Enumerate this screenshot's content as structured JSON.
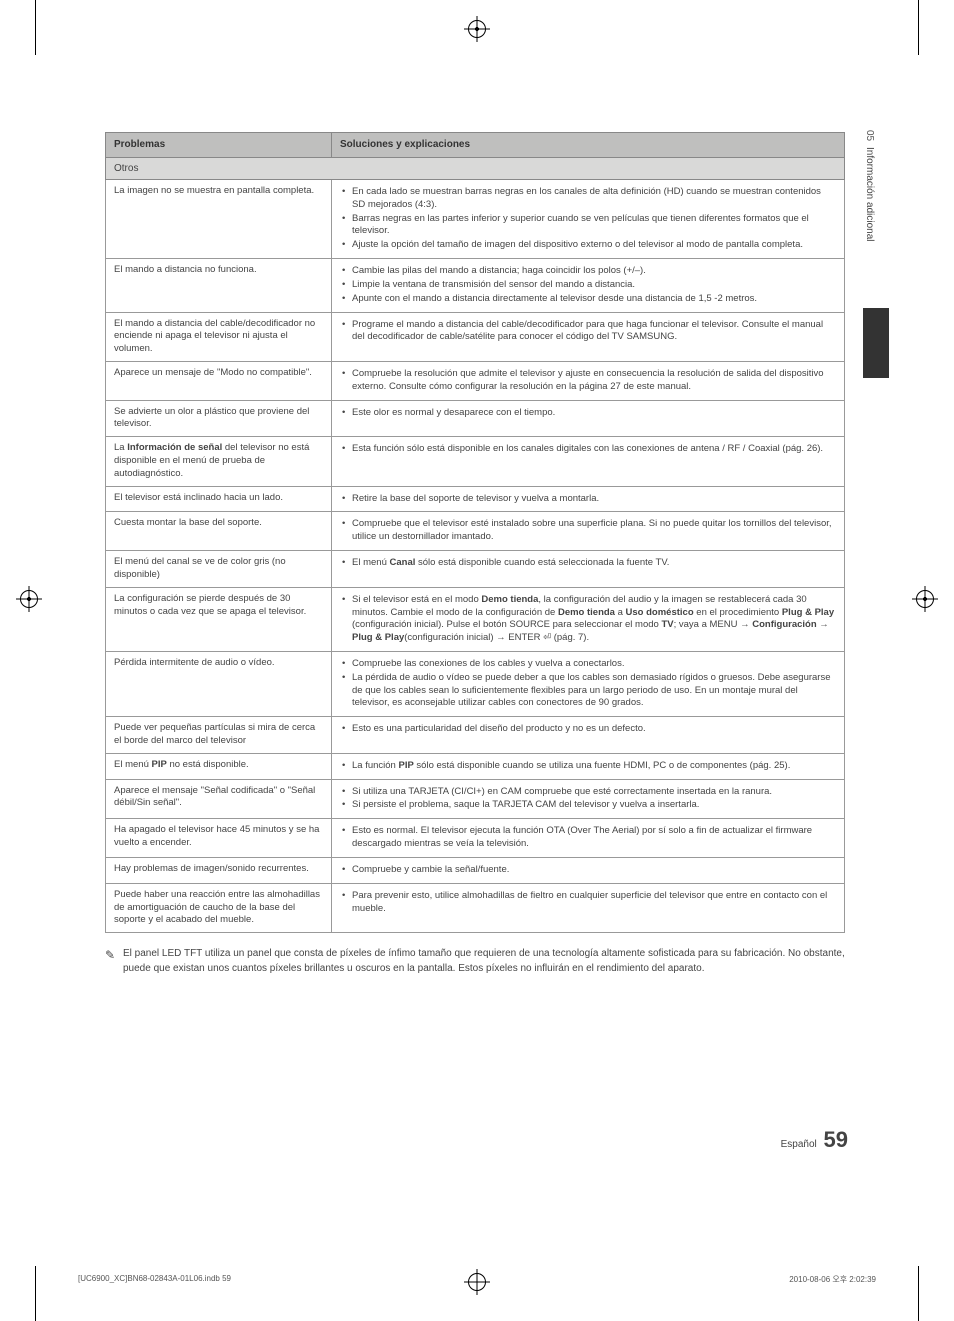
{
  "sidebar": {
    "chapter_num": "05",
    "chapter_title": "Información adicional"
  },
  "table": {
    "header": {
      "problems": "Problemas",
      "solutions": "Soluciones y explicaciones"
    },
    "section": "Otros",
    "rows": [
      {
        "problem": "La imagen no se muestra en pantalla completa.",
        "solutions": [
          "En cada lado se muestran barras negras en los canales de alta definición (HD) cuando se muestran contenidos SD mejorados (4:3).",
          "Barras negras en las partes inferior y superior cuando se ven películas que tienen diferentes formatos que el televisor.",
          "Ajuste la opción del tamaño de imagen del dispositivo externo o del televisor al modo de pantalla completa."
        ]
      },
      {
        "problem": "El mando a distancia no funciona.",
        "solutions": [
          "Cambie las pilas del mando a distancia; haga coincidir los polos (+/–).",
          "Limpie la ventana de transmisión del sensor del mando a distancia.",
          "Apunte con el mando a distancia directamente al televisor desde una distancia de 1,5 -2 metros."
        ]
      },
      {
        "problem": "El mando a distancia del cable/decodificador no enciende ni apaga el televisor ni ajusta el volumen.",
        "solutions": [
          "Programe el mando a distancia del cable/decodificador para que haga funcionar el televisor. Consulte el manual del decodificador de cable/satélite para conocer el código del TV SAMSUNG."
        ]
      },
      {
        "problem": "Aparece un mensaje de \"Modo no compatible\".",
        "solutions": [
          "Compruebe la resolución que admite el televisor y ajuste en consecuencia la resolución de salida del dispositivo externo. Consulte cómo configurar la resolución en la página 27 de este manual."
        ]
      },
      {
        "problem": "Se advierte un olor a plástico que proviene del televisor.",
        "solutions": [
          "Este olor es normal y desaparece con el tiempo."
        ]
      },
      {
        "problem_html": "La <b>Información de señal</b> del televisor no está disponible en el menú de prueba de autodiagnóstico.",
        "solutions": [
          "Esta función sólo está disponible en los canales digitales con las conexiones de antena / RF / Coaxial (pág. 26)."
        ]
      },
      {
        "problem": "El televisor está inclinado hacia un lado.",
        "solutions": [
          "Retire la base del soporte de televisor y vuelva a montarla."
        ]
      },
      {
        "problem": "Cuesta montar la base del soporte.",
        "solutions": [
          "Compruebe que el televisor esté instalado sobre una superficie plana. Si no puede quitar los tornillos del televisor, utilice un destornillador imantado."
        ]
      },
      {
        "problem": "El menú del canal se ve de color gris (no disponible)",
        "solutions_html": [
          "El menú <b>Canal</b> sólo está disponible cuando está seleccionada la fuente TV."
        ]
      },
      {
        "problem": "La configuración se pierde después de 30 minutos o cada vez que se apaga el televisor.",
        "solutions_html": [
          "Si el televisor está en el modo <b>Demo tienda</b>, la configuración del audio y la imagen se restablecerá cada 30 minutos. Cambie el modo de la configuración de <b>Demo tienda</b> a <b>Uso doméstico</b> en el procedimiento <b>Plug & Play</b> (configuración inicial). Pulse el botón SOURCE para seleccionar el modo <b>TV</b>; vaya a MENU → <b>Configuración</b> → <b>Plug & Play</b>(configuración inicial) → ENTER ⏎ (pág. 7)."
        ]
      },
      {
        "problem": "Pérdida intermitente de audio o vídeo.",
        "solutions": [
          "Compruebe las conexiones de los cables y vuelva a conectarlos.",
          "La pérdida de audio o vídeo se puede deber a que los cables son demasiado rígidos o gruesos. Debe asegurarse de que los cables sean lo suficientemente flexibles para un largo periodo de uso. En un montaje mural del televisor, es aconsejable utilizar cables con conectores de 90 grados."
        ]
      },
      {
        "problem": "Puede ver pequeñas partículas si mira de cerca el borde del marco del televisor",
        "solutions": [
          "Esto es una particularidad del diseño del producto y no es un defecto."
        ]
      },
      {
        "problem_html": "El menú <b>PIP</b> no está disponible.",
        "solutions_html": [
          "La función <b>PIP</b> sólo está disponible cuando se utiliza una fuente HDMI, PC o de componentes (pág. 25)."
        ]
      },
      {
        "problem": "Aparece el mensaje \"Señal codificada\" o \"Señal débil/Sin señal\".",
        "solutions": [
          "Si utiliza una TARJETA (CI/CI+) en CAM compruebe que esté correctamente insertada en la ranura.",
          "Si persiste el problema, saque la TARJETA CAM del televisor y vuelva a insertarla."
        ]
      },
      {
        "problem": "Ha apagado el televisor hace 45 minutos y se ha vuelto a encender.",
        "solutions": [
          "Esto es normal. El televisor ejecuta la función OTA (Over The Aerial) por sí solo a fin de actualizar el firmware descargado mientras se veía la televisión."
        ]
      },
      {
        "problem": "Hay problemas de imagen/sonido recurrentes.",
        "solutions": [
          "Compruebe y cambie la señal/fuente."
        ]
      },
      {
        "problem": "Puede haber una reacción entre las almohadillas de amortiguación de caucho de la base del soporte y el acabado del mueble.",
        "solutions": [
          "Para prevenir esto, utilice almohadillas de fieltro en cualquier superficie del televisor que entre en contacto con el mueble."
        ]
      }
    ]
  },
  "note": {
    "icon": "✎",
    "text": "El panel LED TFT utiliza un panel que consta de píxeles de ínfimo tamaño que requieren de una tecnología altamente sofisticada para su fabricación. No obstante, puede que existan unos cuantos píxeles brillantes u oscuros en la pantalla. Estos píxeles no influirán en el rendimiento del aparato."
  },
  "footer": {
    "lang": "Español",
    "page": "59"
  },
  "print": {
    "file": "[UC6900_XC]BN68-02843A-01L06.indb   59",
    "timestamp": "2010-08-06   오후 2:02:39"
  },
  "colors": {
    "header_bg": "#bfbfbe",
    "section_bg": "#d9d9d8",
    "border": "#999999",
    "text": "#444444"
  }
}
